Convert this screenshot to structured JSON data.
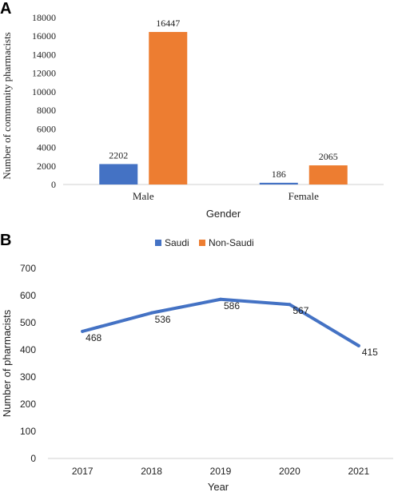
{
  "chart_data": [
    {
      "panel": "A",
      "type": "bar",
      "categories": [
        "Male",
        "Female"
      ],
      "series": [
        {
          "name": "",
          "values": [
            2202,
            186
          ],
          "color": "#4472C4"
        },
        {
          "name": "",
          "values": [
            16447,
            2065
          ],
          "color": "#ED7D31"
        }
      ],
      "xlabel": "Gender",
      "ylabel": "Number of community pharmacists",
      "ylim": [
        0,
        18000
      ],
      "yticks": [
        0,
        2000,
        4000,
        6000,
        8000,
        10000,
        12000,
        14000,
        16000,
        18000
      ],
      "grid": false
    },
    {
      "panel": "B",
      "type": "line",
      "legend": {
        "position": "top-center",
        "entries": [
          {
            "name": "Saudi",
            "color": "#4472C4"
          },
          {
            "name": "Non-Saudi",
            "color": "#ED7D31"
          }
        ]
      },
      "x": [
        "2017",
        "2018",
        "2019",
        "2020",
        "2021"
      ],
      "series": [
        {
          "values": [
            468,
            536,
            586,
            567,
            415
          ],
          "color": "#4472C4"
        }
      ],
      "xlabel": "Year",
      "ylabel": "Number of pharmacists",
      "ylim": [
        0,
        700
      ],
      "yticks": [
        0,
        100,
        200,
        300,
        400,
        500,
        600,
        700
      ],
      "grid": false
    }
  ]
}
